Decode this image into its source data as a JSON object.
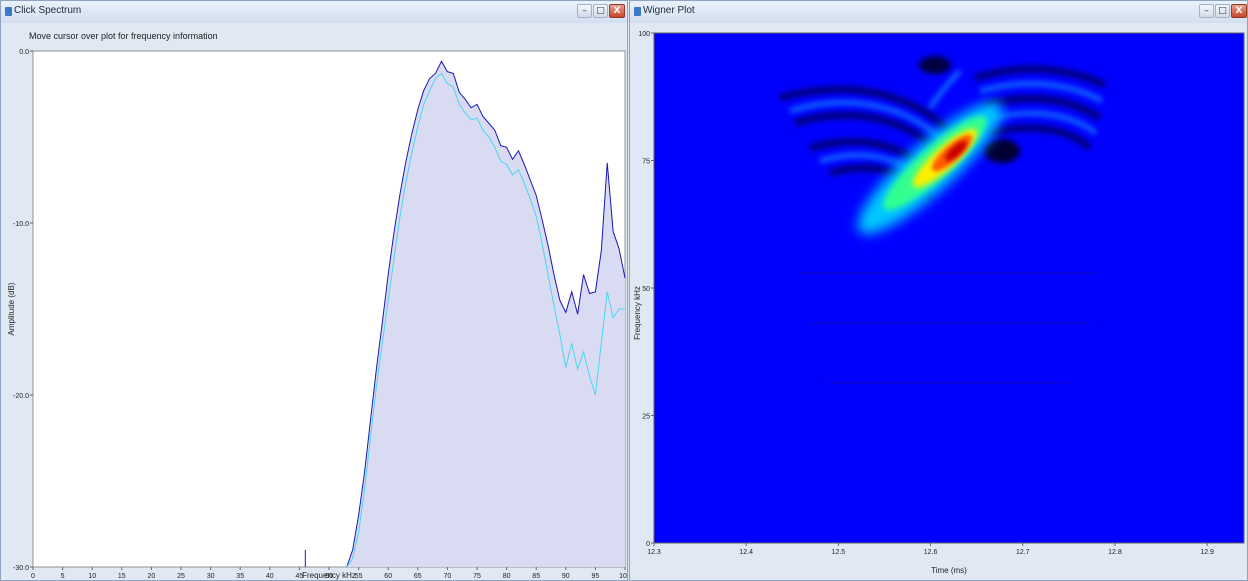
{
  "left_window": {
    "title": "Click Spectrum",
    "hint": "Move cursor over plot for frequency information",
    "buttons": {
      "minimize": "–",
      "maximize": "□",
      "close": "X"
    }
  },
  "right_window": {
    "title": "Wigner Plot",
    "buttons": {
      "minimize": "–",
      "maximize": "□",
      "close": "X"
    }
  },
  "colors": {
    "fill": "#d9dbf3",
    "dark_line": "#1a16b4",
    "light_line": "#4ad6ef",
    "wigner_bg": "#0000ff"
  },
  "chart_data": [
    {
      "type": "area",
      "xlabel": "Frequency kHz",
      "ylabel": "Amplitude (dB)",
      "xlim": [
        0,
        100
      ],
      "ylim": [
        -30,
        0
      ],
      "x_ticks": [
        "0",
        "5",
        "10",
        "15",
        "20",
        "25",
        "30",
        "35",
        "40",
        "45",
        "50",
        "55",
        "60",
        "65",
        "70",
        "75",
        "80",
        "85",
        "90",
        "95",
        "100"
      ],
      "y_ticks": [
        "0.0",
        "-10.0",
        "-20.0",
        "-30.0"
      ],
      "series": [
        {
          "x": [
            53,
            54,
            55,
            56,
            57,
            58,
            59,
            60,
            61,
            62,
            63,
            64,
            65,
            66,
            67,
            68,
            69,
            70,
            71,
            72,
            73,
            74,
            75,
            76,
            77,
            78,
            79,
            80,
            81,
            82,
            83,
            84,
            85,
            86,
            87,
            88,
            89,
            90,
            91,
            92,
            93,
            94,
            95,
            96,
            97,
            98,
            99,
            100
          ],
          "values": [
            -30,
            -29,
            -27,
            -24.5,
            -21.5,
            -18.5,
            -15.8,
            -13,
            -10.5,
            -8.3,
            -6.4,
            -4.8,
            -3.4,
            -2.3,
            -1.6,
            -1.3,
            -0.6,
            -1.2,
            -1.3,
            -2.4,
            -2.8,
            -3.3,
            -3.1,
            -3.8,
            -4.2,
            -4.6,
            -5.5,
            -5.6,
            -6.3,
            -5.8,
            -6.6,
            -7.5,
            -8.4,
            -9.8,
            -11.3,
            -13,
            -14.5,
            -15.2,
            -14,
            -15.3,
            -13,
            -14.1,
            -14,
            -11.6,
            -6.5,
            -10.5,
            -11.5,
            -13.2
          ]
        },
        {
          "x": [
            53,
            54,
            55,
            56,
            57,
            58,
            59,
            60,
            61,
            62,
            63,
            64,
            65,
            66,
            67,
            68,
            69,
            70,
            71,
            72,
            73,
            74,
            75,
            76,
            77,
            78,
            79,
            80,
            81,
            82,
            83,
            84,
            85,
            86,
            87,
            88,
            89,
            90,
            91,
            92,
            93,
            94,
            95,
            96,
            97,
            98,
            99,
            100
          ],
          "values": [
            -30,
            -29.5,
            -28,
            -25.5,
            -22.5,
            -19.5,
            -17,
            -14.5,
            -12,
            -9.6,
            -7.6,
            -5.9,
            -4.4,
            -3.1,
            -2.3,
            -1.6,
            -1.3,
            -1.9,
            -2.1,
            -3.1,
            -3.6,
            -4,
            -3.9,
            -4.6,
            -5,
            -5.6,
            -6.4,
            -6.6,
            -7.2,
            -6.9,
            -7.7,
            -8.6,
            -9.6,
            -11.2,
            -13,
            -14.8,
            -16.5,
            -18.4,
            -17,
            -18.5,
            -17.5,
            -18.9,
            -20,
            -17,
            -14,
            -15.5,
            -15,
            -15
          ]
        }
      ]
    },
    {
      "type": "heatmap",
      "xlabel": "Time (ms)",
      "ylabel": "Frequency kHz",
      "xlim": [
        12.3,
        12.94
      ],
      "ylim": [
        0,
        100
      ],
      "x_ticks": [
        "12.3",
        "12.4",
        "12.5",
        "12.6",
        "12.7",
        "12.8",
        "12.9"
      ],
      "y_ticks": [
        "100",
        "75",
        "50",
        "25",
        "0"
      ]
    }
  ]
}
